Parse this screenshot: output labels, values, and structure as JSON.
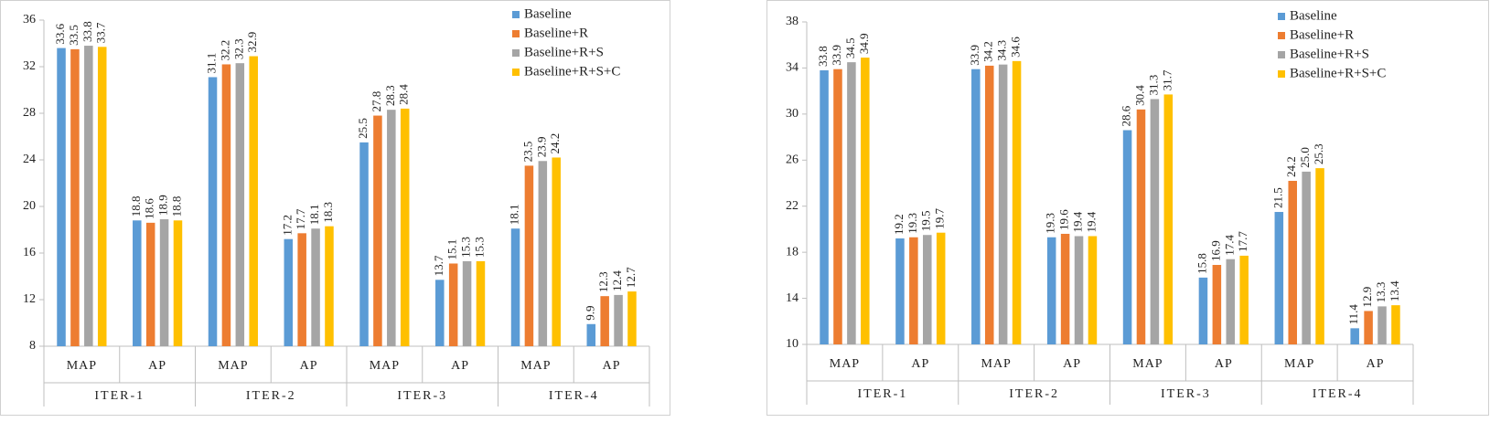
{
  "chart_data": [
    {
      "type": "bar",
      "categories": [
        "MAP",
        "AP",
        "MAP",
        "AP",
        "MAP",
        "AP",
        "MAP",
        "AP"
      ],
      "groups": [
        "ITER-1",
        "ITER-2",
        "ITER-3",
        "ITER-4"
      ],
      "ylim": [
        8,
        36
      ],
      "yticks": [
        8,
        12,
        16,
        20,
        24,
        28,
        32,
        36
      ],
      "grid": false,
      "legend": "top-right",
      "series": [
        {
          "name": "Baseline",
          "color": "#5b9bd5",
          "values": [
            33.6,
            18.8,
            31.1,
            17.2,
            25.5,
            13.7,
            18.1,
            9.9
          ],
          "value_labels": [
            "33.6",
            "18.8",
            "31.1",
            "17.2",
            "25.5",
            "13.7",
            "18.1",
            "9.9"
          ]
        },
        {
          "name": "Baseline+R",
          "color": "#ed7d31",
          "values": [
            33.5,
            18.6,
            32.2,
            17.7,
            27.8,
            15.1,
            23.5,
            12.3
          ],
          "value_labels": [
            "33.5",
            "18.6",
            "32.2",
            "17.7",
            "27.8",
            "15.1",
            "23.5",
            "12.3"
          ]
        },
        {
          "name": "Baseline+R+S",
          "color": "#a5a5a5",
          "values": [
            33.8,
            18.9,
            32.3,
            18.1,
            28.3,
            15.3,
            23.9,
            12.4
          ],
          "value_labels": [
            "33.8",
            "18.9",
            "32.3",
            "18.1",
            "28.3",
            "15.3",
            "23.9",
            "12.4"
          ]
        },
        {
          "name": "Baseline+R+S+C",
          "color": "#ffc000",
          "values": [
            33.7,
            18.8,
            32.9,
            18.3,
            28.4,
            15.3,
            24.2,
            12.7
          ],
          "value_labels": [
            "33.7",
            "18.8",
            "32.9",
            "18.3",
            "28.4",
            "15.3",
            "24.2",
            "12.7"
          ]
        }
      ]
    },
    {
      "type": "bar",
      "categories": [
        "MAP",
        "AP",
        "MAP",
        "AP",
        "MAP",
        "AP",
        "MAP",
        "AP"
      ],
      "groups": [
        "ITER-1",
        "ITER-2",
        "ITER-3",
        "ITER-4"
      ],
      "ylim": [
        10,
        38
      ],
      "yticks": [
        10,
        14,
        18,
        22,
        26,
        30,
        34,
        38
      ],
      "grid": false,
      "legend": "top-right",
      "series": [
        {
          "name": "Baseline",
          "color": "#5b9bd5",
          "values": [
            33.8,
            19.2,
            33.9,
            19.3,
            28.6,
            15.8,
            21.5,
            11.4
          ],
          "value_labels": [
            "33.8",
            "19.2",
            "33.9",
            "19.3",
            "28.6",
            "15.8",
            "21.5",
            "11.4"
          ]
        },
        {
          "name": "Baseline+R",
          "color": "#ed7d31",
          "values": [
            33.9,
            19.3,
            34.2,
            19.6,
            30.4,
            16.9,
            24.2,
            12.9
          ],
          "value_labels": [
            "33.9",
            "19.3",
            "34.2",
            "19.6",
            "30.4",
            "16.9",
            "24.2",
            "12.9"
          ]
        },
        {
          "name": "Baseline+R+S",
          "color": "#a5a5a5",
          "values": [
            34.5,
            19.5,
            34.3,
            19.4,
            31.3,
            17.4,
            25.0,
            13.3
          ],
          "value_labels": [
            "34.5",
            "19.5",
            "34.3",
            "19.4",
            "31.3",
            "17.4",
            "25.0",
            "13.3"
          ]
        },
        {
          "name": "Baseline+R+S+C",
          "color": "#ffc000",
          "values": [
            34.9,
            19.7,
            34.6,
            19.4,
            31.7,
            17.7,
            25.3,
            13.4
          ],
          "value_labels": [
            "34.9",
            "19.7",
            "34.6",
            "19.4",
            "31.7",
            "17.7",
            "25.3",
            "13.4"
          ]
        }
      ]
    }
  ]
}
